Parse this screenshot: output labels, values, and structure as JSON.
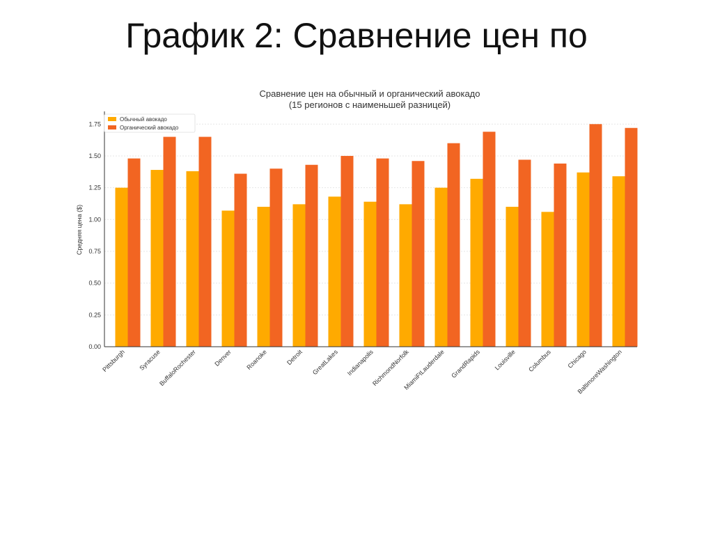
{
  "slide": {
    "title": "График 2: Сравнение цен по"
  },
  "chart_data": {
    "type": "bar",
    "title": "Сравнение цен на обычный и органический авокадо",
    "subtitle": "(15 регионов с наименьшей разницей)",
    "xlabel": "",
    "ylabel": "Средняя цена ($)",
    "ylim": [
      0,
      1.85
    ],
    "yticks": [
      "0.00",
      "0.25",
      "0.50",
      "0.75",
      "1.00",
      "1.25",
      "1.50",
      "1.75"
    ],
    "grid": true,
    "legend_position": "top-left",
    "categories": [
      "Pittsburgh",
      "Syracuse",
      "BuffaloRochester",
      "Denver",
      "Roanoke",
      "Detroit",
      "GreatLakes",
      "Indianapolis",
      "RichmondNorfolk",
      "MiamiFtLauderdale",
      "GrandRapids",
      "Louisville",
      "Columbus",
      "Chicago",
      "BaltimoreWashington"
    ],
    "series": [
      {
        "name": "Обычный авокадо",
        "color": "#FFAA00",
        "values": [
          1.25,
          1.39,
          1.38,
          1.07,
          1.1,
          1.12,
          1.18,
          1.14,
          1.12,
          1.25,
          1.32,
          1.1,
          1.06,
          1.37,
          1.34
        ]
      },
      {
        "name": "Органический авокадо",
        "color": "#F26522",
        "values": [
          1.48,
          1.65,
          1.65,
          1.36,
          1.4,
          1.43,
          1.5,
          1.48,
          1.46,
          1.6,
          1.69,
          1.47,
          1.44,
          1.75,
          1.72
        ]
      }
    ]
  }
}
